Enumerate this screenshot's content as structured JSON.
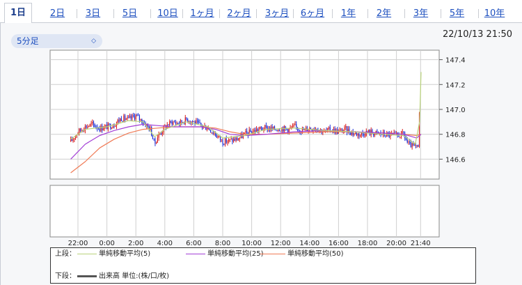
{
  "tabs": [
    {
      "label": "1日",
      "active": true
    },
    {
      "label": "2日"
    },
    {
      "label": "3日"
    },
    {
      "label": "5日"
    },
    {
      "label": "10日"
    },
    {
      "label": "1ヶ月"
    },
    {
      "label": "2ヶ月"
    },
    {
      "label": "3ヶ月"
    },
    {
      "label": "6ヶ月"
    },
    {
      "label": "1年"
    },
    {
      "label": "2年"
    },
    {
      "label": "3年"
    },
    {
      "label": "5年"
    },
    {
      "label": "10年"
    }
  ],
  "interval_select": {
    "value": "5分足"
  },
  "timestamp": "22/10/13 21:50",
  "colors": {
    "candle": "#1a2fd8",
    "candle_up": "#d81c1c",
    "sma5": "#b9d37a",
    "sma25": "#a33ed6",
    "sma50": "#f07a55",
    "volume": "#555555"
  },
  "chart_data": {
    "type": "candlestick",
    "x_tick_labels": [
      "22:00",
      "0:00",
      "2:00",
      "4:00",
      "6:00",
      "8:00",
      "10:00",
      "12:00",
      "14:00",
      "16:00",
      "18:00",
      "20:00",
      "21:40"
    ],
    "y_tick_labels": [
      "147.4",
      "147.2",
      "147.0",
      "146.8",
      "146.6"
    ],
    "y_ticks": [
      147.4,
      147.2,
      147.0,
      146.8,
      146.6
    ],
    "ylim": [
      146.45,
      147.5
    ],
    "price_path": [
      [
        21.5,
        146.74
      ],
      [
        22.0,
        146.82
      ],
      [
        22.5,
        146.86
      ],
      [
        23.0,
        146.88
      ],
      [
        23.5,
        146.85
      ],
      [
        24.0,
        146.86
      ],
      [
        24.5,
        146.88
      ],
      [
        25.0,
        146.93
      ],
      [
        25.5,
        146.92
      ],
      [
        26.0,
        146.95
      ],
      [
        26.5,
        146.9
      ],
      [
        27.0,
        146.84
      ],
      [
        27.3,
        146.72
      ],
      [
        27.5,
        146.78
      ],
      [
        28.0,
        146.86
      ],
      [
        28.5,
        146.9
      ],
      [
        29.0,
        146.89
      ],
      [
        29.5,
        146.92
      ],
      [
        30.0,
        146.9
      ],
      [
        30.5,
        146.87
      ],
      [
        31.0,
        146.85
      ],
      [
        31.5,
        146.8
      ],
      [
        32.0,
        146.74
      ],
      [
        32.5,
        146.75
      ],
      [
        33.0,
        146.76
      ],
      [
        33.5,
        146.8
      ],
      [
        34.0,
        146.82
      ],
      [
        34.5,
        146.84
      ],
      [
        35.0,
        146.85
      ],
      [
        35.5,
        146.84
      ],
      [
        36.0,
        146.85
      ],
      [
        36.5,
        146.84
      ],
      [
        37.0,
        146.86
      ],
      [
        37.5,
        146.83
      ],
      [
        38.0,
        146.85
      ],
      [
        38.5,
        146.85
      ],
      [
        39.0,
        146.82
      ],
      [
        39.5,
        146.84
      ],
      [
        40.0,
        146.82
      ],
      [
        40.5,
        146.84
      ],
      [
        41.0,
        146.81
      ],
      [
        41.5,
        146.8
      ],
      [
        42.0,
        146.82
      ],
      [
        42.5,
        146.81
      ],
      [
        43.0,
        146.8
      ],
      [
        44.0,
        146.79
      ],
      [
        44.5,
        146.8
      ],
      [
        44.8,
        146.72
      ],
      [
        45.2,
        146.7
      ],
      [
        45.5,
        146.69
      ],
      [
        45.58,
        146.95
      ],
      [
        45.66,
        147.42
      ],
      [
        45.7,
        147.38
      ]
    ],
    "sma5": [
      [
        21.5,
        146.76
      ],
      [
        22.5,
        146.84
      ],
      [
        24.0,
        146.86
      ],
      [
        25.5,
        146.91
      ],
      [
        26.5,
        146.9
      ],
      [
        27.3,
        146.78
      ],
      [
        28.0,
        146.84
      ],
      [
        29.5,
        146.9
      ],
      [
        31.0,
        146.86
      ],
      [
        32.0,
        146.77
      ],
      [
        33.5,
        146.79
      ],
      [
        35.0,
        146.84
      ],
      [
        37.0,
        146.85
      ],
      [
        39.0,
        146.83
      ],
      [
        41.0,
        146.82
      ],
      [
        43.0,
        146.8
      ],
      [
        44.5,
        146.79
      ],
      [
        45.3,
        146.72
      ],
      [
        45.6,
        146.9
      ],
      [
        45.7,
        147.3
      ]
    ],
    "sma25": [
      [
        21.5,
        146.6
      ],
      [
        22.5,
        146.72
      ],
      [
        23.5,
        146.79
      ],
      [
        24.5,
        146.83
      ],
      [
        25.5,
        146.86
      ],
      [
        26.5,
        146.88
      ],
      [
        27.5,
        146.87
      ],
      [
        28.5,
        146.86
      ],
      [
        29.5,
        146.86
      ],
      [
        30.5,
        146.86
      ],
      [
        31.5,
        146.84
      ],
      [
        32.5,
        146.8
      ],
      [
        33.5,
        146.79
      ],
      [
        35.0,
        146.8
      ],
      [
        37.0,
        146.82
      ],
      [
        39.0,
        146.83
      ],
      [
        41.0,
        146.82
      ],
      [
        43.0,
        146.81
      ],
      [
        44.5,
        146.8
      ],
      [
        45.4,
        146.77
      ],
      [
        45.7,
        146.8
      ]
    ],
    "sma50": [
      [
        21.5,
        146.49
      ],
      [
        22.5,
        146.58
      ],
      [
        23.5,
        146.69
      ],
      [
        24.5,
        146.76
      ],
      [
        25.5,
        146.81
      ],
      [
        26.5,
        146.84
      ],
      [
        27.5,
        146.85
      ],
      [
        28.5,
        146.86
      ],
      [
        29.5,
        146.86
      ],
      [
        30.5,
        146.86
      ],
      [
        31.5,
        146.85
      ],
      [
        32.5,
        146.82
      ],
      [
        33.5,
        146.8
      ],
      [
        35.0,
        146.8
      ],
      [
        37.0,
        146.81
      ],
      [
        39.0,
        146.82
      ],
      [
        41.0,
        146.82
      ],
      [
        43.0,
        146.81
      ],
      [
        44.5,
        146.8
      ],
      [
        45.4,
        146.79
      ],
      [
        45.7,
        146.8
      ]
    ],
    "upper_panel_label": "上段：",
    "lower_panel_label": "下段：",
    "legend": {
      "sma5": "単純移動平均(5)",
      "sma25": "単純移動平均(25)",
      "sma50": "単純移動平均(50)",
      "volume": "出来高 単位:(株/口/枚)"
    },
    "grid": true
  }
}
